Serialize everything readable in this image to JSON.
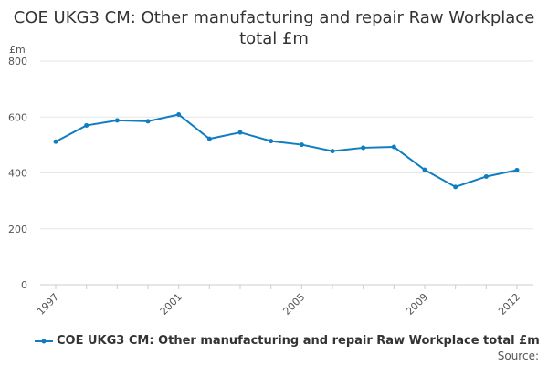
{
  "chart_data": {
    "type": "line",
    "title": "COE UKG3 CM: Other manufacturing and repair Raw Workplace total £m",
    "ylabel": "£m",
    "xlabel": "",
    "ylim": [
      0,
      800
    ],
    "yticks": [
      0,
      200,
      400,
      600,
      800
    ],
    "xticks": [
      1997,
      2001,
      2005,
      2009,
      2012
    ],
    "x": [
      1997,
      1998,
      1999,
      2000,
      2001,
      2002,
      2003,
      2004,
      2005,
      2006,
      2007,
      2008,
      2009,
      2010,
      2011,
      2012
    ],
    "series": [
      {
        "name": "COE UKG3 CM: Other manufacturing and repair Raw Workplace total £m",
        "color": "#0f7dc2",
        "values": [
          512,
          570,
          588,
          585,
          609,
          522,
          545,
          514,
          501,
          478,
          490,
          493,
          411,
          350,
          387,
          410
        ]
      }
    ],
    "grid": true,
    "legend": "bottom"
  },
  "source_label": "Source:"
}
